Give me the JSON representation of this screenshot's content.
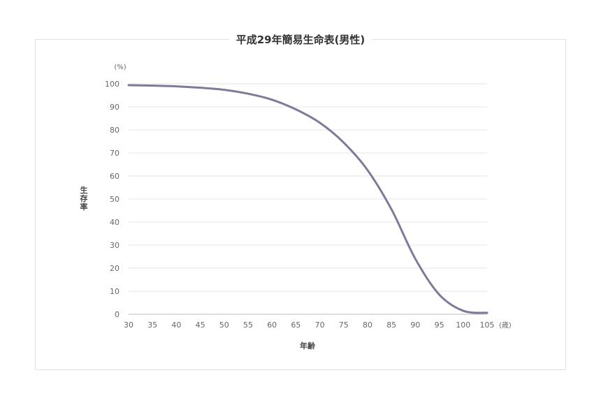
{
  "chart_data": {
    "type": "line",
    "title": "平成29年簡易生命表(男性)",
    "xlabel": "年齢",
    "ylabel": "生存率",
    "x_unit": "(歳)",
    "y_unit": "(%)",
    "xlim": [
      30,
      105
    ],
    "ylim": [
      0,
      100
    ],
    "x_ticks": [
      30,
      35,
      40,
      45,
      50,
      55,
      60,
      65,
      70,
      75,
      80,
      85,
      90,
      95,
      100,
      105
    ],
    "y_ticks": [
      0,
      10,
      20,
      30,
      40,
      50,
      60,
      70,
      80,
      90,
      100
    ],
    "grid": "horizontal",
    "legend": "none",
    "line_color": "#7c7c9a",
    "series": [
      {
        "x": [
          30,
          35,
          40,
          45,
          50,
          55,
          60,
          65,
          70,
          75,
          80,
          85,
          90,
          95,
          100,
          105
        ],
        "values": [
          99.4,
          99.2,
          98.9,
          98.3,
          97.4,
          95.7,
          93.1,
          88.9,
          83.1,
          74.5,
          62.5,
          45.5,
          24.0,
          8.5,
          1.5,
          0.6
        ]
      }
    ]
  }
}
